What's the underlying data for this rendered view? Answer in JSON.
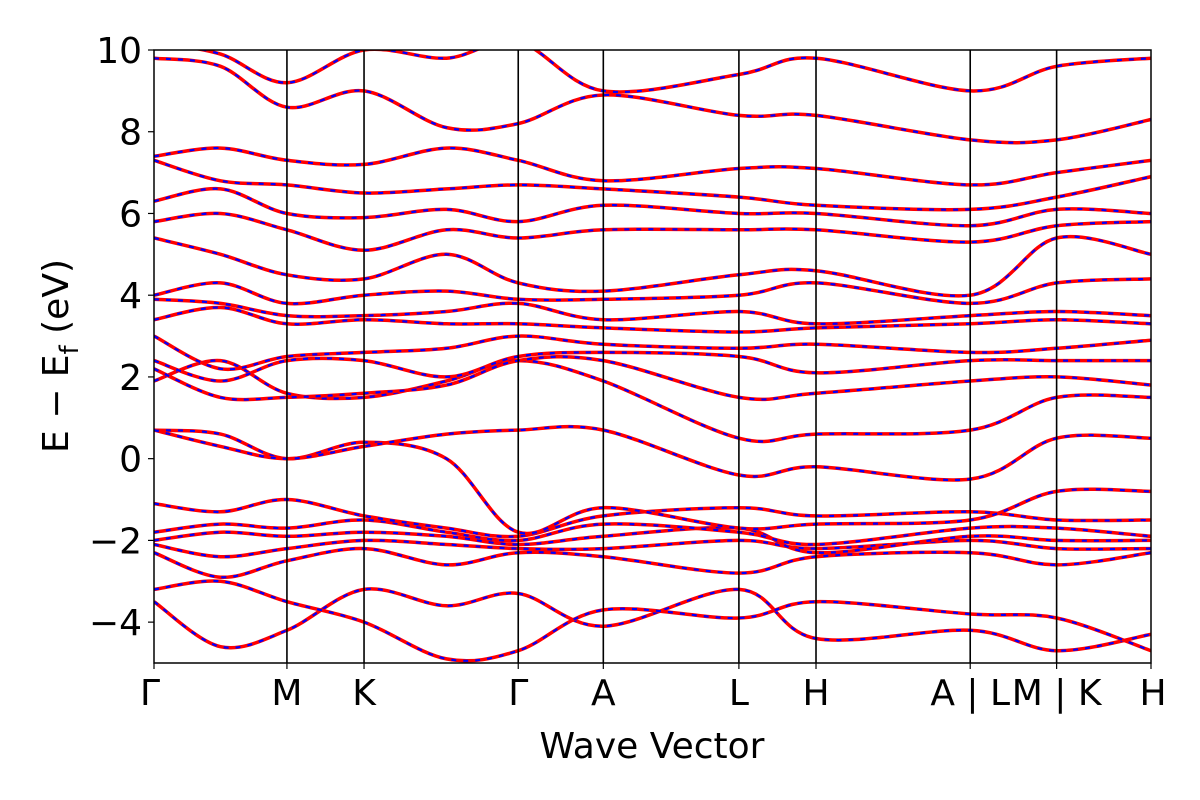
{
  "chart_data": {
    "type": "line",
    "xlabel": "Wave Vector",
    "ylabel": "E − E",
    "ylabel_sub": "f",
    "ylabel_unit": " (eV)",
    "ylim": [
      -5,
      10
    ],
    "yticks": [
      -4,
      -2,
      0,
      2,
      4,
      6,
      8,
      10
    ],
    "ytick_labels": [
      "−4",
      "−2",
      "0",
      "2",
      "4",
      "6",
      "8",
      "10"
    ],
    "xlim": [
      0,
      7.5
    ],
    "kpoints": [
      {
        "label": "Γ",
        "x": 0.0
      },
      {
        "label": "M",
        "x": 1.0
      },
      {
        "label": "K",
        "x": 1.58
      },
      {
        "label": "Γ",
        "x": 2.74
      },
      {
        "label": "A",
        "x": 3.38
      },
      {
        "label": "L",
        "x": 4.4
      },
      {
        "label": "H",
        "x": 4.98
      },
      {
        "label": "A | L",
        "x": 6.14
      },
      {
        "label": "M | K",
        "x": 6.79
      },
      {
        "label": "H",
        "x": 7.5
      }
    ],
    "colors": {
      "band_solid": "#ff0000",
      "band_dashed": "#0000ff",
      "frame": "#000000"
    },
    "series": [
      {
        "values": [
          [
            0,
            -3.5
          ],
          [
            0.5,
            -4.6
          ],
          [
            1.0,
            -4.2
          ],
          [
            1.58,
            -3.2
          ],
          [
            2.2,
            -3.6
          ],
          [
            2.74,
            -3.3
          ],
          [
            3.38,
            -4.1
          ],
          [
            4.4,
            -3.2
          ],
          [
            4.98,
            -4.4
          ],
          [
            6.14,
            -4.2
          ],
          [
            6.79,
            -4.7
          ],
          [
            7.5,
            -4.3
          ]
        ]
      },
      {
        "values": [
          [
            0,
            -3.2
          ],
          [
            0.5,
            -3.0
          ],
          [
            1.0,
            -3.5
          ],
          [
            1.58,
            -4.0
          ],
          [
            2.2,
            -4.9
          ],
          [
            2.74,
            -4.7
          ],
          [
            3.38,
            -3.7
          ],
          [
            4.4,
            -3.9
          ],
          [
            4.98,
            -3.5
          ],
          [
            6.14,
            -3.8
          ],
          [
            6.79,
            -3.9
          ],
          [
            7.5,
            -4.7
          ]
        ]
      },
      {
        "values": [
          [
            0,
            -2.3
          ],
          [
            0.5,
            -2.9
          ],
          [
            1.0,
            -2.5
          ],
          [
            1.58,
            -2.2
          ],
          [
            2.2,
            -2.6
          ],
          [
            2.74,
            -2.3
          ],
          [
            3.38,
            -2.4
          ],
          [
            4.4,
            -2.8
          ],
          [
            4.98,
            -2.4
          ],
          [
            6.14,
            -2.3
          ],
          [
            6.79,
            -2.6
          ],
          [
            7.5,
            -2.3
          ]
        ]
      },
      {
        "values": [
          [
            0,
            -2.1
          ],
          [
            0.5,
            -2.4
          ],
          [
            1.0,
            -2.2
          ],
          [
            1.58,
            -2.0
          ],
          [
            2.2,
            -2.1
          ],
          [
            2.74,
            -2.2
          ],
          [
            3.38,
            -2.2
          ],
          [
            4.4,
            -2.0
          ],
          [
            4.98,
            -2.2
          ],
          [
            6.14,
            -2.0
          ],
          [
            6.79,
            -2.2
          ],
          [
            7.5,
            -2.2
          ]
        ]
      },
      {
        "values": [
          [
            0,
            -2.0
          ],
          [
            0.5,
            -1.8
          ],
          [
            1.0,
            -1.9
          ],
          [
            1.58,
            -1.8
          ],
          [
            2.2,
            -1.9
          ],
          [
            2.74,
            -2.1
          ],
          [
            3.38,
            -1.9
          ],
          [
            4.4,
            -1.7
          ],
          [
            4.98,
            -2.3
          ],
          [
            6.14,
            -1.9
          ],
          [
            6.79,
            -2.0
          ],
          [
            7.5,
            -2.0
          ]
        ]
      },
      {
        "values": [
          [
            0,
            -1.8
          ],
          [
            0.5,
            -1.6
          ],
          [
            1.0,
            -1.7
          ],
          [
            1.58,
            -1.5
          ],
          [
            2.2,
            -1.8
          ],
          [
            2.74,
            -2.0
          ],
          [
            3.38,
            -1.6
          ],
          [
            4.4,
            -1.8
          ],
          [
            4.98,
            -2.1
          ],
          [
            6.14,
            -1.7
          ],
          [
            6.79,
            -1.7
          ],
          [
            7.5,
            -1.9
          ]
        ]
      },
      {
        "values": [
          [
            0,
            -1.1
          ],
          [
            0.5,
            -1.3
          ],
          [
            1.0,
            -1.0
          ],
          [
            1.58,
            -1.4
          ],
          [
            2.2,
            -1.7
          ],
          [
            2.74,
            -1.9
          ],
          [
            3.38,
            -1.4
          ],
          [
            4.4,
            -1.2
          ],
          [
            4.98,
            -1.4
          ],
          [
            6.14,
            -1.3
          ],
          [
            6.79,
            -1.5
          ],
          [
            7.5,
            -1.5
          ]
        ]
      },
      {
        "values": [
          [
            0,
            0.7
          ],
          [
            0.5,
            0.6
          ],
          [
            1.0,
            0.0
          ],
          [
            1.58,
            0.4
          ],
          [
            2.2,
            0.0
          ],
          [
            2.74,
            -1.8
          ],
          [
            3.38,
            -1.2
          ],
          [
            4.4,
            -1.7
          ],
          [
            4.98,
            -1.6
          ],
          [
            6.14,
            -1.5
          ],
          [
            6.79,
            -0.8
          ],
          [
            7.5,
            -0.8
          ]
        ]
      },
      {
        "values": [
          [
            0,
            0.7
          ],
          [
            0.5,
            0.3
          ],
          [
            1.0,
            0.0
          ],
          [
            1.58,
            0.3
          ],
          [
            2.2,
            0.6
          ],
          [
            2.74,
            0.7
          ],
          [
            3.38,
            0.7
          ],
          [
            4.4,
            -0.4
          ],
          [
            4.98,
            -0.2
          ],
          [
            6.14,
            -0.5
          ],
          [
            6.79,
            0.5
          ],
          [
            7.5,
            0.5
          ]
        ]
      },
      {
        "values": [
          [
            0,
            1.9
          ],
          [
            0.5,
            2.4
          ],
          [
            1.0,
            1.6
          ],
          [
            1.58,
            1.5
          ],
          [
            2.2,
            1.9
          ],
          [
            2.74,
            2.4
          ],
          [
            3.38,
            1.9
          ],
          [
            4.4,
            0.5
          ],
          [
            4.98,
            0.6
          ],
          [
            6.14,
            0.7
          ],
          [
            6.79,
            1.5
          ],
          [
            7.5,
            1.5
          ]
        ]
      },
      {
        "values": [
          [
            0,
            2.2
          ],
          [
            0.5,
            1.5
          ],
          [
            1.0,
            1.5
          ],
          [
            1.58,
            1.6
          ],
          [
            2.2,
            1.8
          ],
          [
            2.74,
            2.4
          ],
          [
            3.38,
            2.4
          ],
          [
            4.4,
            1.5
          ],
          [
            4.98,
            1.6
          ],
          [
            6.14,
            1.9
          ],
          [
            6.79,
            2.0
          ],
          [
            7.5,
            1.8
          ]
        ]
      },
      {
        "values": [
          [
            0,
            2.4
          ],
          [
            0.5,
            1.9
          ],
          [
            1.0,
            2.4
          ],
          [
            1.58,
            2.4
          ],
          [
            2.2,
            2.0
          ],
          [
            2.74,
            2.5
          ],
          [
            3.38,
            2.6
          ],
          [
            4.4,
            2.5
          ],
          [
            4.98,
            2.1
          ],
          [
            6.14,
            2.4
          ],
          [
            6.79,
            2.4
          ],
          [
            7.5,
            2.4
          ]
        ]
      },
      {
        "values": [
          [
            0,
            3.0
          ],
          [
            0.5,
            2.2
          ],
          [
            1.0,
            2.5
          ],
          [
            1.58,
            2.6
          ],
          [
            2.2,
            2.7
          ],
          [
            2.74,
            3.0
          ],
          [
            3.38,
            2.8
          ],
          [
            4.4,
            2.7
          ],
          [
            4.98,
            2.8
          ],
          [
            6.14,
            2.6
          ],
          [
            6.79,
            2.7
          ],
          [
            7.5,
            2.9
          ]
        ]
      },
      {
        "values": [
          [
            0,
            3.4
          ],
          [
            0.5,
            3.7
          ],
          [
            1.0,
            3.3
          ],
          [
            1.58,
            3.4
          ],
          [
            2.2,
            3.3
          ],
          [
            2.74,
            3.3
          ],
          [
            3.38,
            3.2
          ],
          [
            4.4,
            3.1
          ],
          [
            4.98,
            3.2
          ],
          [
            6.14,
            3.3
          ],
          [
            6.79,
            3.4
          ],
          [
            7.5,
            3.3
          ]
        ]
      },
      {
        "values": [
          [
            0,
            3.9
          ],
          [
            0.5,
            3.8
          ],
          [
            1.0,
            3.5
          ],
          [
            1.58,
            3.5
          ],
          [
            2.2,
            3.6
          ],
          [
            2.74,
            3.8
          ],
          [
            3.38,
            3.4
          ],
          [
            4.4,
            3.6
          ],
          [
            4.98,
            3.3
          ],
          [
            6.14,
            3.5
          ],
          [
            6.79,
            3.6
          ],
          [
            7.5,
            3.5
          ]
        ]
      },
      {
        "values": [
          [
            0,
            4.0
          ],
          [
            0.5,
            4.3
          ],
          [
            1.0,
            3.8
          ],
          [
            1.58,
            4.0
          ],
          [
            2.2,
            4.1
          ],
          [
            2.74,
            3.9
          ],
          [
            3.38,
            3.9
          ],
          [
            4.4,
            4.0
          ],
          [
            4.98,
            4.3
          ],
          [
            6.14,
            3.8
          ],
          [
            6.79,
            4.3
          ],
          [
            7.5,
            4.4
          ]
        ]
      },
      {
        "values": [
          [
            0,
            5.4
          ],
          [
            0.5,
            5.0
          ],
          [
            1.0,
            4.5
          ],
          [
            1.58,
            4.4
          ],
          [
            2.2,
            5.0
          ],
          [
            2.74,
            4.3
          ],
          [
            3.38,
            4.1
          ],
          [
            4.4,
            4.5
          ],
          [
            4.98,
            4.6
          ],
          [
            6.14,
            4.0
          ],
          [
            6.79,
            5.4
          ],
          [
            7.5,
            5.0
          ]
        ]
      },
      {
        "values": [
          [
            0,
            5.8
          ],
          [
            0.5,
            6.0
          ],
          [
            1.0,
            5.6
          ],
          [
            1.58,
            5.1
          ],
          [
            2.2,
            5.6
          ],
          [
            2.74,
            5.4
          ],
          [
            3.38,
            5.6
          ],
          [
            4.4,
            5.6
          ],
          [
            4.98,
            5.6
          ],
          [
            6.14,
            5.3
          ],
          [
            6.79,
            5.7
          ],
          [
            7.5,
            5.8
          ]
        ]
      },
      {
        "values": [
          [
            0,
            6.3
          ],
          [
            0.5,
            6.6
          ],
          [
            1.0,
            6.0
          ],
          [
            1.58,
            5.9
          ],
          [
            2.2,
            6.1
          ],
          [
            2.74,
            5.8
          ],
          [
            3.38,
            6.2
          ],
          [
            4.4,
            6.0
          ],
          [
            4.98,
            6.0
          ],
          [
            6.14,
            5.7
          ],
          [
            6.79,
            6.1
          ],
          [
            7.5,
            6.0
          ]
        ]
      },
      {
        "values": [
          [
            0,
            7.3
          ],
          [
            0.5,
            6.8
          ],
          [
            1.0,
            6.7
          ],
          [
            1.58,
            6.5
          ],
          [
            2.2,
            6.6
          ],
          [
            2.74,
            6.7
          ],
          [
            3.38,
            6.6
          ],
          [
            4.4,
            6.4
          ],
          [
            4.98,
            6.2
          ],
          [
            6.14,
            6.1
          ],
          [
            6.79,
            6.4
          ],
          [
            7.5,
            6.9
          ]
        ]
      },
      {
        "values": [
          [
            0,
            7.4
          ],
          [
            0.5,
            7.6
          ],
          [
            1.0,
            7.3
          ],
          [
            1.58,
            7.2
          ],
          [
            2.2,
            7.6
          ],
          [
            2.74,
            7.3
          ],
          [
            3.38,
            6.8
          ],
          [
            4.4,
            7.1
          ],
          [
            4.98,
            7.1
          ],
          [
            6.14,
            6.7
          ],
          [
            6.79,
            7.0
          ],
          [
            7.5,
            7.3
          ]
        ]
      },
      {
        "values": [
          [
            0,
            9.8
          ],
          [
            0.5,
            9.6
          ],
          [
            1.0,
            8.6
          ],
          [
            1.58,
            9.0
          ],
          [
            2.2,
            8.1
          ],
          [
            2.74,
            8.2
          ],
          [
            3.38,
            8.9
          ],
          [
            4.4,
            8.4
          ],
          [
            4.98,
            8.4
          ],
          [
            6.14,
            7.8
          ],
          [
            6.79,
            7.8
          ],
          [
            7.5,
            8.3
          ]
        ]
      },
      {
        "values": [
          [
            0,
            10.2
          ],
          [
            0.5,
            9.9
          ],
          [
            1.0,
            9.2
          ],
          [
            1.58,
            10.0
          ],
          [
            2.2,
            9.8
          ],
          [
            2.74,
            10.2
          ],
          [
            3.38,
            9.0
          ],
          [
            4.4,
            9.4
          ],
          [
            4.98,
            9.8
          ],
          [
            6.14,
            9.0
          ],
          [
            6.79,
            9.6
          ],
          [
            7.5,
            9.8
          ]
        ]
      }
    ]
  }
}
